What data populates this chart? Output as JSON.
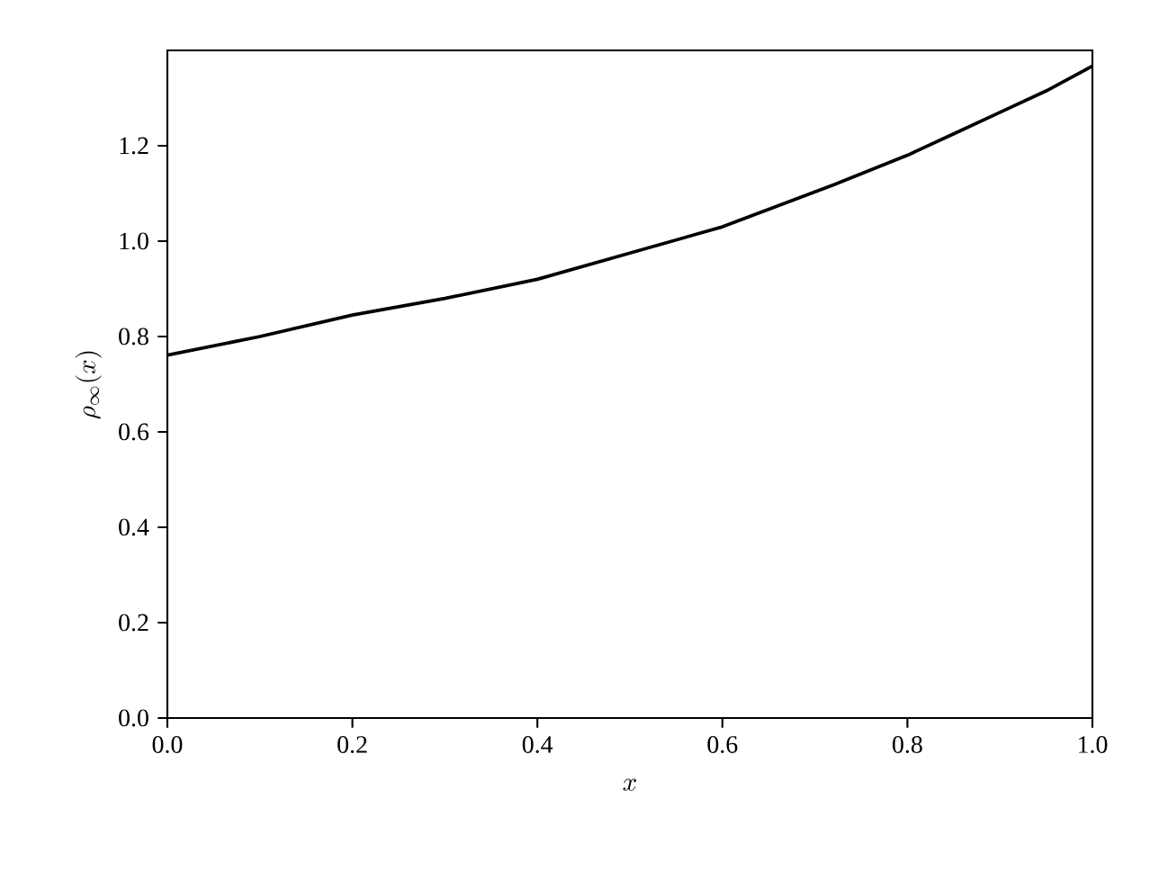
{
  "chart_data": {
    "type": "line",
    "xlabel": "x",
    "ylabel": "\\rho_\\infty(x)",
    "xlim": [
      0,
      1
    ],
    "ylim": [
      0,
      1.4
    ],
    "xticks": [
      {
        "value": 0,
        "label": "0.0"
      },
      {
        "value": 0.2,
        "label": "0.2"
      },
      {
        "value": 0.4,
        "label": "0.4"
      },
      {
        "value": 0.6,
        "label": "0.6"
      },
      {
        "value": 0.8,
        "label": "0.8"
      },
      {
        "value": 1,
        "label": "1.0"
      }
    ],
    "yticks": [
      {
        "value": 0,
        "label": "0.0"
      },
      {
        "value": 0.2,
        "label": "0.2"
      },
      {
        "value": 0.4,
        "label": "0.4"
      },
      {
        "value": 0.6,
        "label": "0.6"
      },
      {
        "value": 0.8,
        "label": "0.8"
      },
      {
        "value": 1.0,
        "label": "1.0"
      },
      {
        "value": 1.2,
        "label": "1.2"
      }
    ],
    "marker": "none",
    "line_style": "solid",
    "series": [
      {
        "color": "#000000",
        "x": [
          0,
          0.1,
          0.2,
          0.3,
          0.4,
          0.5,
          0.6,
          0.72,
          0.8,
          0.85,
          0.9,
          0.95,
          1.0
        ],
        "values": [
          0.761,
          0.8,
          0.845,
          0.88,
          0.92,
          0.975,
          1.03,
          1.118,
          1.18,
          1.225,
          1.27,
          1.315,
          1.367
        ]
      }
    ]
  }
}
